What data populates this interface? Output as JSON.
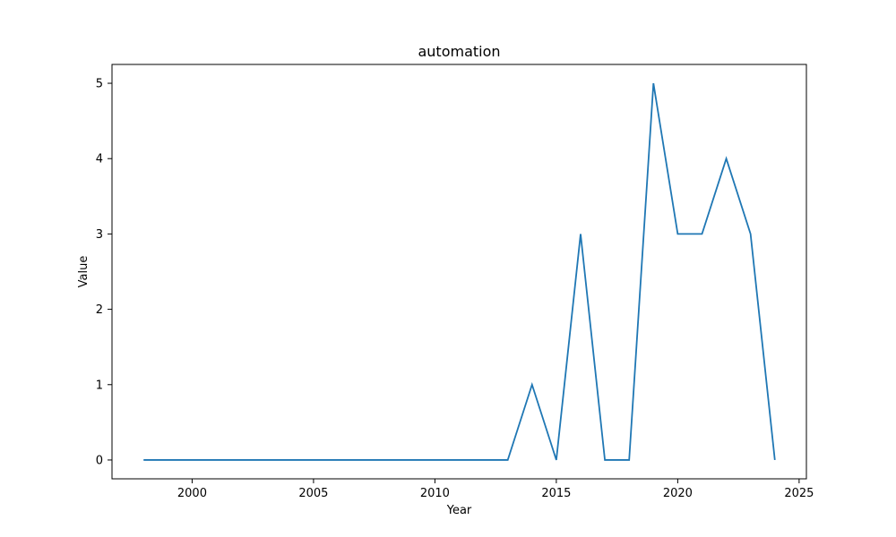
{
  "chart_data": {
    "type": "line",
    "title": "automation",
    "xlabel": "Year",
    "ylabel": "Value",
    "x": [
      1998,
      1999,
      2000,
      2001,
      2002,
      2003,
      2004,
      2005,
      2006,
      2007,
      2008,
      2009,
      2010,
      2011,
      2012,
      2013,
      2014,
      2015,
      2016,
      2017,
      2018,
      2019,
      2020,
      2021,
      2022,
      2023,
      2024
    ],
    "series": [
      {
        "values": [
          0,
          0,
          0,
          0,
          0,
          0,
          0,
          0,
          0,
          0,
          0,
          0,
          0,
          0,
          0,
          0,
          1,
          0,
          3,
          0,
          0,
          5,
          3,
          3,
          4,
          3,
          0
        ],
        "color": "#1f77b4"
      }
    ],
    "xlim": [
      1996.7,
      2025.3
    ],
    "ylim": [
      -0.25,
      5.25
    ],
    "xticks": [
      2000,
      2005,
      2010,
      2015,
      2020,
      2025
    ],
    "yticks": [
      0,
      1,
      2,
      3,
      4,
      5
    ],
    "grid": false,
    "legend": "none"
  }
}
